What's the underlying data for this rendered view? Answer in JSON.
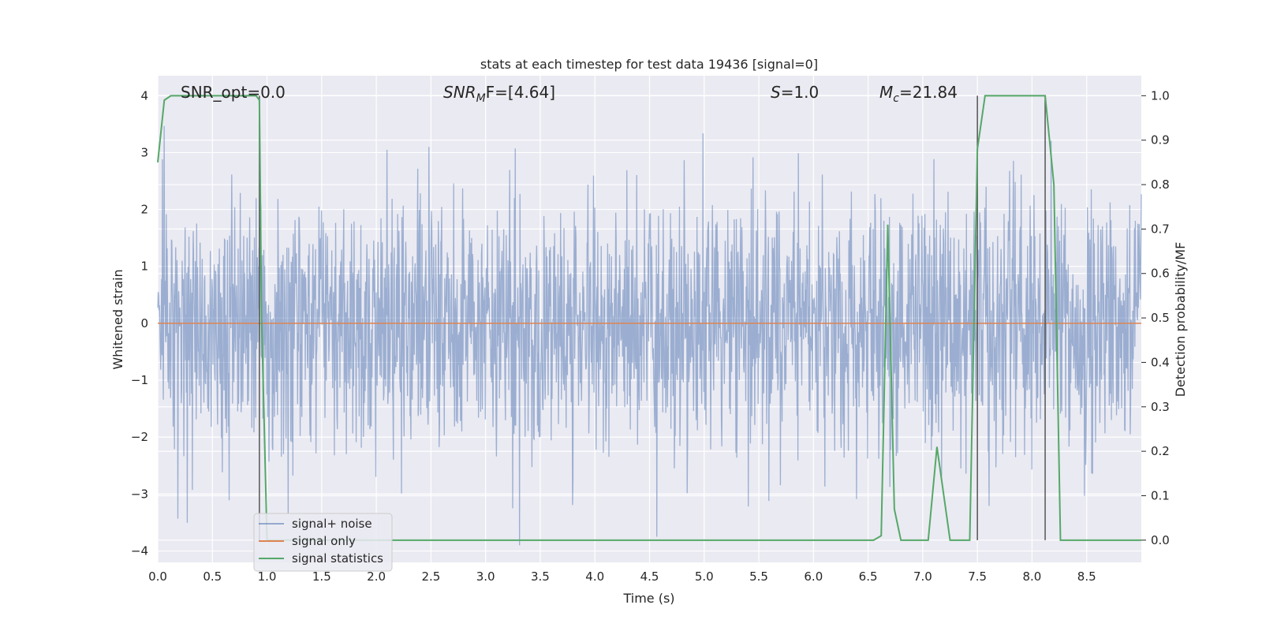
{
  "chart_data": {
    "type": "line",
    "title": "stats at each timestep for test data 19436 [signal=0]",
    "xlabel": "Time (s)",
    "ylabel_left": "Whitened strain",
    "ylabel_right": "Detection probability/MF",
    "xlim": [
      0,
      9.0
    ],
    "ylim_left": [
      -4.2,
      4.35
    ],
    "ylim_right": [
      -0.05,
      1.045
    ],
    "grid": true,
    "legend_position": "lower-left",
    "x_ticks": [
      0.0,
      0.5,
      1.0,
      1.5,
      2.0,
      2.5,
      3.0,
      3.5,
      4.0,
      4.5,
      5.0,
      5.5,
      6.0,
      6.5,
      7.0,
      7.5,
      8.0,
      8.5
    ],
    "x_tick_labels": [
      "0.0",
      "0.5",
      "1.0",
      "1.5",
      "2.0",
      "2.5",
      "3.0",
      "3.5",
      "4.0",
      "4.5",
      "5.0",
      "5.5",
      "6.0",
      "6.5",
      "7.0",
      "7.5",
      "8.0",
      "8.5"
    ],
    "y_left_ticks": [
      4,
      3,
      2,
      1,
      0,
      -1,
      -2,
      -3,
      -4
    ],
    "y_left_tick_labels": [
      "4",
      "3",
      "2",
      "1",
      "0",
      "−1",
      "−2",
      "−3",
      "−4"
    ],
    "y_right_ticks": [
      1.0,
      0.9,
      0.8,
      0.7,
      0.6,
      0.5,
      0.4,
      0.3,
      0.2,
      0.1,
      0.0
    ],
    "y_right_tick_labels": [
      "1.0",
      "0.9",
      "0.8",
      "0.7",
      "0.6",
      "0.5",
      "0.4",
      "0.3",
      "0.2",
      "0.1",
      "0.0"
    ],
    "annotations": {
      "snr_opt": "SNR_opt=0.0",
      "snr_mf_main": "SNR",
      "snr_mf_sub": "M",
      "snr_mf_tail": "F=[4.64]",
      "s_main": "S",
      "s_tail": "=1.0",
      "mc_main": "M",
      "mc_sub": "c",
      "mc_tail": "=21.84"
    },
    "series": [
      {
        "name": "signal+ noise",
        "color": "#4c72b0",
        "style": "whitened strain noise, approx ±2.2 typical amplitude, peaks to about ±4",
        "axis": "left"
      },
      {
        "name": "signal only",
        "color": "#dd8452",
        "axis": "left",
        "x": [
          0,
          9.0
        ],
        "y": [
          0,
          0
        ]
      },
      {
        "name": "signal statistics",
        "color": "#55a868",
        "axis": "right",
        "x": [
          0.0,
          0.06,
          0.12,
          0.9,
          0.93,
          0.95,
          1.0,
          1.05,
          6.55,
          6.62,
          6.68,
          6.74,
          6.8,
          7.05,
          7.13,
          7.25,
          7.43,
          7.5,
          7.57,
          8.12,
          8.2,
          8.26,
          9.0
        ],
        "y": [
          0.85,
          0.99,
          1.0,
          1.0,
          0.99,
          0.5,
          0.0,
          0.0,
          0.0,
          0.01,
          0.71,
          0.07,
          0.0,
          0.0,
          0.21,
          0.0,
          0.0,
          0.88,
          1.0,
          1.0,
          0.8,
          0.0,
          0.0
        ]
      }
    ],
    "vertical_markers": [
      0.93,
      7.5,
      8.12
    ],
    "vertical_marker_color": "#555555"
  },
  "colors": {
    "plot_background": "#eaeaf2",
    "grid": "#ffffff",
    "noise": "#4c72b0",
    "signal": "#dd8452",
    "statistics": "#55a868"
  }
}
